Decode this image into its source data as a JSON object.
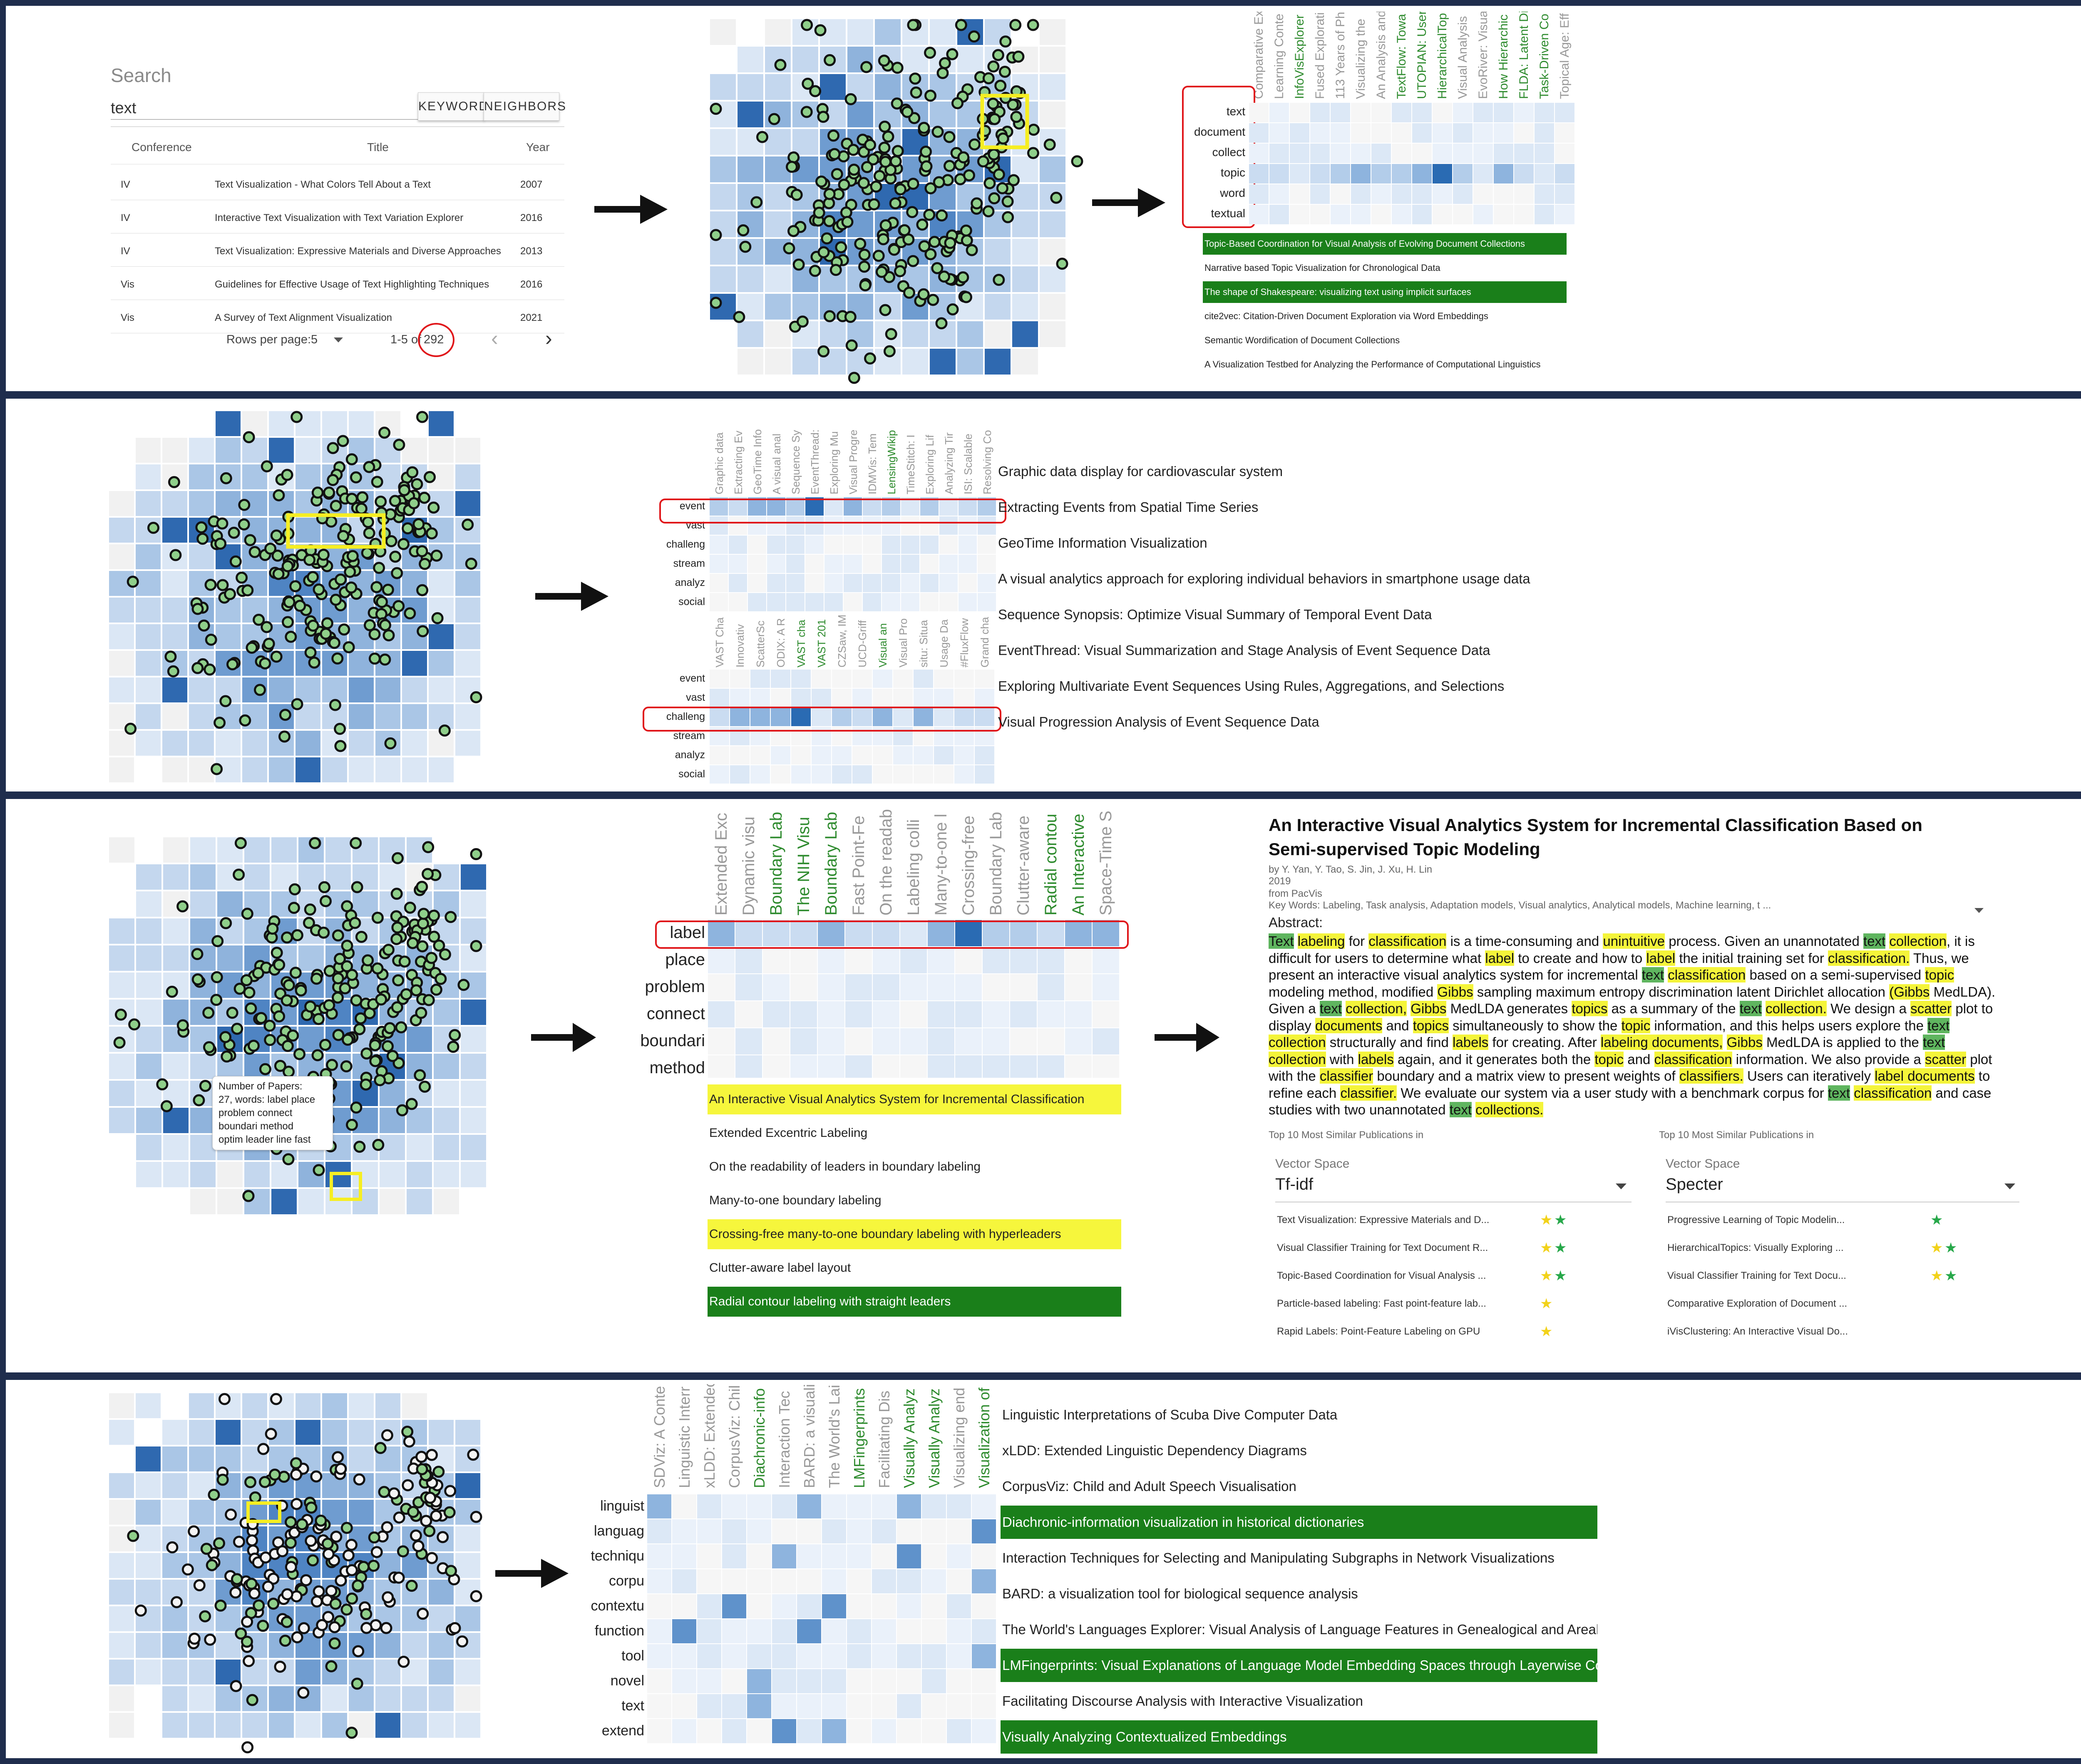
{
  "panel1": {
    "search": {
      "label": "Search",
      "value": "text",
      "keyword_btn": "KEYWORD",
      "neighbors_btn": "NEIGHBORS"
    },
    "table": {
      "headers": [
        "Conference",
        "Title",
        "Year"
      ],
      "rows": [
        [
          "IV",
          "Text Visualization - What Colors Tell About a Text",
          "2007"
        ],
        [
          "IV",
          "Interactive Text Visualization with Text Variation Explorer",
          "2016"
        ],
        [
          "IV",
          "Text Visualization: Expressive Materials and Diverse Approaches",
          "2013"
        ],
        [
          "Vis",
          "Guidelines for Effective Usage of Text Highlighting Techniques",
          "2016"
        ],
        [
          "Vis",
          "A Survey of Text Alignment Visualization",
          "2021"
        ]
      ]
    },
    "pagination": {
      "rows_label": "Rows per page:",
      "rows_value": "5",
      "range": "1-5 of",
      "total": "292",
      "prev": "‹",
      "next": "›"
    },
    "columns": [
      "Comparative Ex",
      "Learning Conte",
      "InfoVisExplorer",
      "Fused Explorati",
      "113 Years of Ph",
      "Visualizing the",
      "An Analysis and",
      "TextFlow: Towa",
      "UTOPIAN: User",
      "HierarchicalTop",
      "Visual Analysis",
      "EvoRiver: Visua",
      "How Hierarchic",
      "FLDA: Latent Di",
      "Task-Driven Co",
      "Topical Age: Eff"
    ],
    "column_green": [
      false,
      false,
      true,
      false,
      false,
      false,
      false,
      true,
      true,
      true,
      false,
      false,
      true,
      true,
      true,
      false
    ],
    "keywords": [
      "text",
      "document",
      "collect",
      "topic",
      "word",
      "textual"
    ],
    "titles": [
      {
        "text": "Topic-Based Coordination for Visual Analysis of Evolving Document Collections",
        "hl": "green"
      },
      {
        "text": "Narrative based Topic Visualization for Chronological Data",
        "hl": "none"
      },
      {
        "text": "The shape of Shakespeare: visualizing text using implicit surfaces",
        "hl": "green"
      },
      {
        "text": "cite2vec: Citation-Driven Document Exploration via Word Embeddings",
        "hl": "none"
      },
      {
        "text": "Semantic Wordification of Document Collections",
        "hl": "none"
      },
      {
        "text": "A Visualization Testbed for Analyzing the Performance of Computational Linguistics",
        "hl": "none"
      }
    ]
  },
  "panel2": {
    "columns_top": [
      "Graphic data",
      "Extracting Ev",
      "GeoTime Info",
      "A visual anal",
      "Sequence Sy",
      "EventThread:",
      "Exploring Mu",
      "Visual Progre",
      "IDMVis: Tem",
      "LensingWikip",
      "TimeStitch: I",
      "Exploring Lif",
      "Analyzing Tir",
      "ISI: Scalable",
      "Resolving Co"
    ],
    "columns_top_green": [
      false,
      false,
      false,
      false,
      false,
      false,
      false,
      false,
      false,
      true,
      false,
      false,
      false,
      false,
      false
    ],
    "columns_bottom": [
      "VAST Cha",
      "Innovativ",
      "ScatterSc",
      "ODIX: A R",
      "VAST cha",
      "VAST 201",
      "CZSaw, IM",
      "UCD-Griff",
      "Visual an",
      "Visual Pro",
      "situ: Situa",
      "Usage Da",
      "#FluxFlow",
      "Grand cha"
    ],
    "columns_bottom_green": [
      false,
      false,
      false,
      false,
      true,
      true,
      false,
      false,
      true,
      false,
      false,
      false,
      false,
      false
    ],
    "keywords": [
      "event",
      "vast",
      "challeng",
      "stream",
      "analyz",
      "social"
    ],
    "titles": [
      "Graphic data display for cardiovascular system",
      "Extracting Events from Spatial Time Series",
      "GeoTime Information Visualization",
      "A visual analytics approach for exploring individual behaviors in smartphone usage data",
      "Sequence Synopsis: Optimize Visual Summary of Temporal Event Data",
      "EventThread: Visual Summarization and Stage Analysis of Event Sequence Data",
      "Exploring Multivariate Event Sequences Using Rules, Aggregations, and Selections",
      "Visual Progression Analysis of Event Sequence Data"
    ]
  },
  "panel3": {
    "columns": [
      "Extended Exc",
      "Dynamic visu",
      "Boundary Lab",
      "The NIH Visu",
      "Boundary Lab",
      "Fast Point-Fe",
      "On the readab",
      "Labeling colli",
      "Many-to-one l",
      "Crossing-free",
      "Boundary Lab",
      "Clutter-aware",
      "Radial contou",
      "An Interactive",
      "Space-Time S"
    ],
    "columns_green": [
      false,
      false,
      true,
      true,
      true,
      false,
      false,
      false,
      false,
      false,
      false,
      false,
      true,
      true,
      false
    ],
    "keywords": [
      "label",
      "place",
      "problem",
      "connect",
      "boundari",
      "method"
    ],
    "tooltip": "Number of Papers:\n27, words: label place\nproblem connect\nboundari method\noptim leader line fast",
    "titles": [
      {
        "text": "An Interactive Visual Analytics System for Incremental Classification",
        "hl": "yellow"
      },
      {
        "text": "Extended Excentric Labeling",
        "hl": "none"
      },
      {
        "text": "On the readability of leaders in boundary labeling",
        "hl": "none"
      },
      {
        "text": "Many-to-one boundary labeling",
        "hl": "none"
      },
      {
        "text": "Crossing-free many-to-one boundary labeling with hyperleaders",
        "hl": "yellow"
      },
      {
        "text": "Clutter-aware label layout",
        "hl": "none"
      },
      {
        "text": "Radial contour labeling with straight leaders",
        "hl": "green"
      }
    ],
    "paper": {
      "title": "An Interactive Visual Analytics System for Incremental Classification Based on Semi-supervised Topic Modeling",
      "authors": "by Y. Yan, Y. Tao, S. Jin, J. Xu, H. Lin",
      "year": "2019",
      "source": "from PacVis",
      "keywords": "Key Words: Labeling, Task analysis, Adaptation models, Visual analytics, Analytical models, Machine learning, t ...",
      "abstract_label": "Abstract:",
      "abstract_html": "<span class=\"g\">Text</span> <span class=\"y\">labeling</span> for <span class=\"y\">classification</span> is a time-consuming and <span class=\"y\">unintuitive</span> process. Given an unannotated <span class=\"g\">text</span> <span class=\"y\">collection</span>, it is difficult for users to determine what <span class=\"y\">label</span> to create and how to <span class=\"y\">label</span> the initial training set for <span class=\"y\">classification.</span> Thus, we present an interactive visual analytics system for incremental <span class=\"g\">text</span> <span class=\"y\">classification</span> based on a semi-supervised <span class=\"y\">topic</span> modeling method, modified <span class=\"y\">Gibbs</span> sampling maximum entropy discrimination latent Dirichlet allocation <span class=\"y\">(Gibbs</span> MedLDA). Given a <span class=\"g\">text</span> <span class=\"y\">collection,</span> <span class=\"y\">Gibbs</span> MedLDA generates <span class=\"y\">topics</span> as a summary of the <span class=\"g\">text</span> <span class=\"y\">collection.</span> We design a <span class=\"y\">scatter</span> plot to display <span class=\"y\">documents</span> and <span class=\"y\">topics</span> simultaneously to show the <span class=\"y\">topic</span> information, and this helps users explore the <span class=\"g\">text</span> <span class=\"y\">collection</span> structurally and find <span class=\"y\">labels</span> for creating. After <span class=\"y\">labeling documents,</span> <span class=\"y\">Gibbs</span> MedLDA is applied to the <span class=\"g\">text</span> <span class=\"y\">collection</span> with <span class=\"y\">labels</span> again, and it generates both the <span class=\"y\">topic</span> and <span class=\"y\">classification</span> information. We also provide a <span class=\"y\">scatter</span> plot with the <span class=\"y\">classifier</span> boundary and a matrix view to present weights of <span class=\"y\">classifiers.</span> Users can iteratively <span class=\"y\">label documents</span> to refine each <span class=\"y\">classifier.</span> We evaluate our system via a user study with a benchmark corpus for <span class=\"g\">text</span> <span class=\"y\">classification</span> and case studies with two unannotated <span class=\"g\">text</span> <span class=\"y\">collections.</span>",
      "similar_heading": "Top 10 Most Similar Publications in",
      "left": {
        "label": "Vector Space",
        "value": "Tf-idf",
        "items": [
          {
            "text": "Text Visualization: Expressive Materials and D...",
            "stars": [
              "y",
              "g"
            ]
          },
          {
            "text": "Visual Classifier Training for Text Document R...",
            "stars": [
              "y",
              "g"
            ]
          },
          {
            "text": "Topic-Based Coordination for Visual Analysis ...",
            "stars": [
              "y",
              "g"
            ]
          },
          {
            "text": "Particle-based labeling: Fast point-feature lab...",
            "stars": [
              "y"
            ]
          },
          {
            "text": "Rapid Labels: Point-Feature Labeling on GPU",
            "stars": [
              "y"
            ]
          }
        ]
      },
      "right": {
        "label": "Vector Space",
        "value": "Specter",
        "items": [
          {
            "text": "Progressive Learning of Topic Modelin...",
            "stars": [
              "g"
            ]
          },
          {
            "text": "HierarchicalTopics: Visually Exploring ...",
            "stars": [
              "y",
              "g"
            ]
          },
          {
            "text": "Visual Classifier Training for Text Docu...",
            "stars": [
              "y",
              "g"
            ]
          },
          {
            "text": "Comparative Exploration of Document ...",
            "stars": []
          },
          {
            "text": "iVisClustering: An Interactive Visual Do...",
            "stars": []
          }
        ]
      }
    }
  },
  "panel4": {
    "columns": [
      "SDViz: A Conte",
      "Linguistic Interr",
      "xLDD: Extendec",
      "CorpusViz: Chil",
      "Diachronic-info",
      "Interaction Tec",
      "BARD: a visuali",
      "The World's Lai",
      "LMFingerprints",
      "Facilitating Dis",
      "Visually Analyz",
      "Visually Analyz",
      "Visualizing end",
      "Visualization of"
    ],
    "columns_green": [
      false,
      false,
      false,
      false,
      true,
      false,
      false,
      false,
      true,
      false,
      true,
      true,
      false,
      true
    ],
    "keywords": [
      "linguist",
      "languag",
      "techniqu",
      "corpu",
      "contextu",
      "function",
      "tool",
      "novel",
      "text",
      "extend"
    ],
    "titles": [
      {
        "text": "Linguistic Interpretations of Scuba Dive Computer Data",
        "hl": "none"
      },
      {
        "text": "xLDD: Extended Linguistic Dependency Diagrams",
        "hl": "none"
      },
      {
        "text": "CorpusViz: Child and Adult Speech Visualisation",
        "hl": "none"
      },
      {
        "text": "Diachronic-information visualization in historical dictionaries",
        "hl": "green"
      },
      {
        "text": "Interaction Techniques for Selecting and Manipulating Subgraphs in Network Visualizations",
        "hl": "none"
      },
      {
        "text": "BARD: a visualization tool for biological sequence analysis",
        "hl": "none"
      },
      {
        "text": "The World's Languages Explorer: Visual Analysis of Language Features in Genealogical and Areal Contexts",
        "hl": "none"
      },
      {
        "text": "LMFingerprints: Visual Explanations of Language Model Embedding Spaces through Layerwise Contextualization Scores",
        "hl": "green"
      },
      {
        "text": "Facilitating Discourse Analysis with Interactive Visualization",
        "hl": "none"
      },
      {
        "text": "Visually Analyzing Contextualized Embeddings",
        "hl": "green"
      }
    ]
  },
  "colors": {
    "panel_border": "#1f2d4d",
    "highlight_red": "#e0161a",
    "selection_yellow": "#f6ee22",
    "doc_green": "#1a7f1a",
    "point_fill": "#8fcf8a",
    "cell_dark": "#2a6bb3",
    "cell_light": "#dbe7f5"
  }
}
